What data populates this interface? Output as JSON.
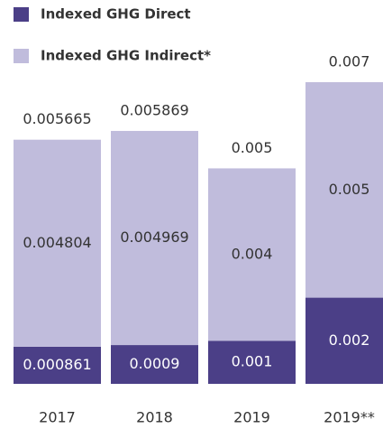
{
  "chart_data": {
    "type": "stacked_bar",
    "categories": [
      "2017",
      "2018",
      "2019",
      "2019**"
    ],
    "series": [
      {
        "name": "Indexed GHG Direct",
        "color": "#4b3f87",
        "values": [
          0.000861,
          0.0009,
          0.001,
          0.002
        ]
      },
      {
        "name": "Indexed GHG Indirect*",
        "color": "#c0bcdc",
        "values": [
          0.004804,
          0.004969,
          0.004,
          0.005
        ]
      }
    ],
    "totals": [
      0.005665,
      0.005869,
      0.005,
      0.007
    ],
    "ylim": [
      0,
      0.007
    ]
  }
}
